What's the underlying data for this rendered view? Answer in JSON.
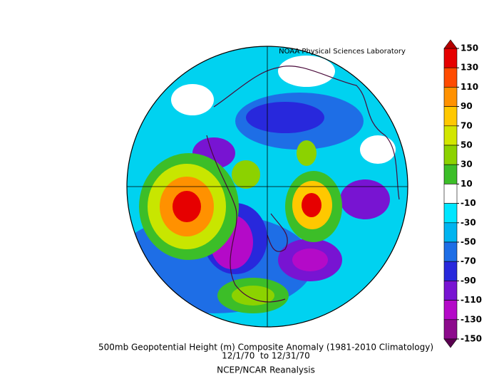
{
  "header": {
    "credit": "NOAA Physical Sciences Laboratory"
  },
  "caption": {
    "title": "500mb Geopotential Height (m) Composite Anomaly (1981-2010 Climatology)",
    "dates": "12/1/70  to 12/31/70",
    "source": "NCEP/NCAR Reanalysis"
  },
  "colorbar": {
    "ticks": [
      150,
      130,
      110,
      90,
      70,
      50,
      30,
      10,
      -10,
      -30,
      -50,
      -70,
      -90,
      -110,
      -130,
      -150
    ],
    "colors": [
      "#e60000",
      "#ff4b00",
      "#ff9100",
      "#ffc800",
      "#d2e600",
      "#8cd200",
      "#3cbe28",
      "#ffffff",
      "#00e6ff",
      "#00b4f0",
      "#1e6ee6",
      "#2828dc",
      "#7814d2",
      "#b40ac8",
      "#8c0a8c"
    ],
    "over_color": "#b40000",
    "under_color": "#5a0050"
  }
}
